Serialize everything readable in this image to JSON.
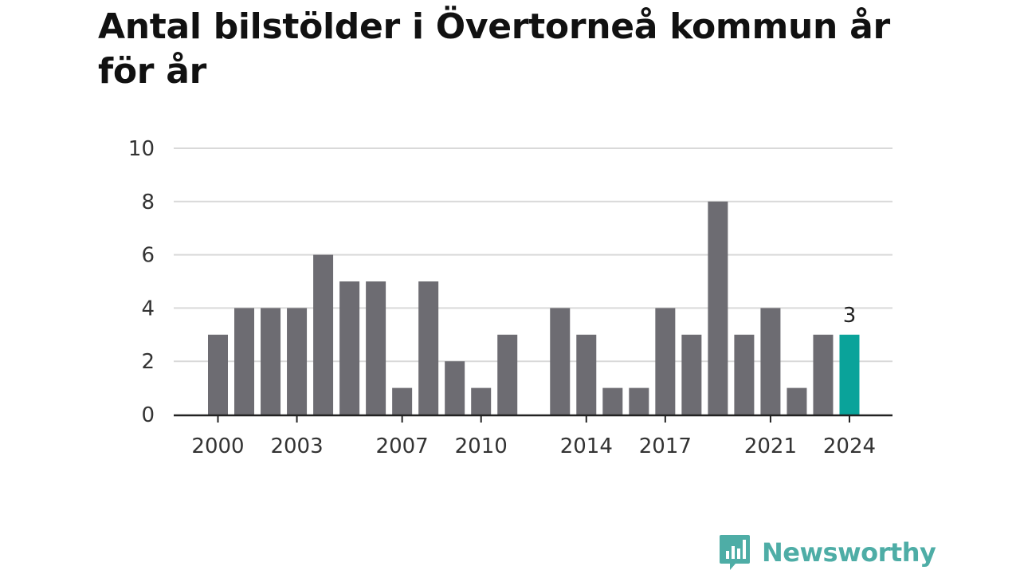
{
  "chart_data": {
    "type": "bar",
    "title": "Antal bilstölder i Övertorneå kommun år för år",
    "xlabel": "",
    "ylabel": "",
    "categories": [
      "2000",
      "2001",
      "2002",
      "2003",
      "2004",
      "2005",
      "2006",
      "2007",
      "2008",
      "2009",
      "2010",
      "2011",
      "2012",
      "2013",
      "2014",
      "2015",
      "2016",
      "2017",
      "2018",
      "2019",
      "2020",
      "2021",
      "2022",
      "2023",
      "2024"
    ],
    "values": [
      3,
      4,
      4,
      4,
      6,
      5,
      5,
      1,
      5,
      2,
      1,
      3,
      null,
      4,
      3,
      1,
      1,
      4,
      3,
      8,
      3,
      4,
      1,
      3,
      3
    ],
    "x_tick_labels": [
      "2000",
      "2003",
      "2007",
      "2010",
      "2014",
      "2017",
      "2021",
      "2024"
    ],
    "y_ticks": [
      0,
      2,
      4,
      6,
      8,
      10
    ],
    "ylim": [
      0,
      10
    ],
    "grid": true,
    "legend": "none",
    "highlight": {
      "category": "2024",
      "label": "3"
    },
    "colors": {
      "bar": "#6d6c72",
      "highlight": "#0aa39a",
      "grid": "#d9d9d9",
      "baseline": "#222222"
    }
  },
  "brand": {
    "name": "Newsworthy",
    "icon": "newsworthy-chart-bubble-icon",
    "color": "#4eada6"
  }
}
